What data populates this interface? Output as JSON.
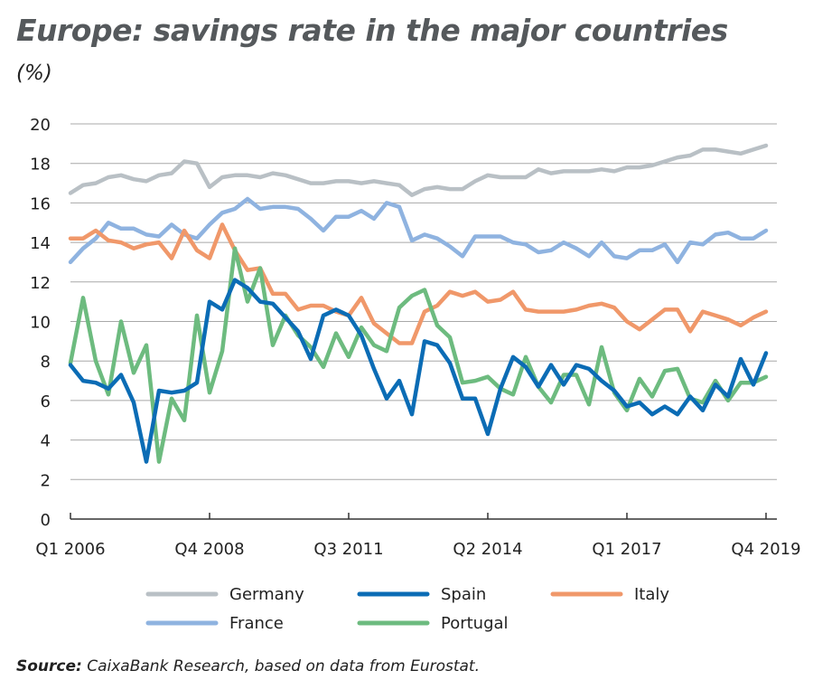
{
  "title": "Europe: savings rate in the major countries",
  "unit": "(%)",
  "source_label": "Source:",
  "source_text": "CaixaBank Research, based on data from Eurostat.",
  "chart_data": {
    "type": "line",
    "title": "Europe: savings rate in the major countries",
    "ylabel": "(%)",
    "ylim": [
      0,
      20
    ],
    "yticks": [
      0,
      2,
      4,
      6,
      8,
      10,
      12,
      14,
      16,
      18,
      20
    ],
    "grid": true,
    "legend_placement": "bottom",
    "x_start": "Q1 2006",
    "x_end": "Q4 2019",
    "frequency": "quarterly",
    "xtick_labels": [
      {
        "label": "Q1 2006",
        "index": 0
      },
      {
        "label": "Q4 2008",
        "index": 11
      },
      {
        "label": "Q3 2011",
        "index": 22
      },
      {
        "label": "Q2 2014",
        "index": 33
      },
      {
        "label": "Q1 2017",
        "index": 44
      },
      {
        "label": "Q4 2019",
        "index": 55
      }
    ],
    "series": [
      {
        "name": "Germany",
        "color": "#b9c0c5",
        "values": [
          16.5,
          16.9,
          17.0,
          17.3,
          17.4,
          17.2,
          17.1,
          17.4,
          17.5,
          18.1,
          18.0,
          16.8,
          17.3,
          17.4,
          17.4,
          17.3,
          17.5,
          17.4,
          17.2,
          17.0,
          17.0,
          17.1,
          17.1,
          17.0,
          17.1,
          17.0,
          16.9,
          16.4,
          16.7,
          16.8,
          16.7,
          16.7,
          17.1,
          17.4,
          17.3,
          17.3,
          17.3,
          17.7,
          17.5,
          17.6,
          17.6,
          17.6,
          17.7,
          17.6,
          17.8,
          17.8,
          17.9,
          18.1,
          18.3,
          18.4,
          18.7,
          18.7,
          18.6,
          18.5,
          18.7,
          18.9
        ]
      },
      {
        "name": "Spain",
        "color": "#0b6cb5",
        "values": [
          7.8,
          7.0,
          6.9,
          6.6,
          7.3,
          5.9,
          2.9,
          6.5,
          6.4,
          6.5,
          6.9,
          11.0,
          10.6,
          12.1,
          11.7,
          11.0,
          10.9,
          10.2,
          9.5,
          8.1,
          10.3,
          10.6,
          10.3,
          9.3,
          7.6,
          6.1,
          7.0,
          5.3,
          9.0,
          8.8,
          7.9,
          6.1,
          6.1,
          4.3,
          6.6,
          8.2,
          7.7,
          6.7,
          7.8,
          6.8,
          7.8,
          7.6,
          7.0,
          6.5,
          5.7,
          5.9,
          5.3,
          5.7,
          5.3,
          6.2,
          5.5,
          6.8,
          6.2,
          8.1,
          6.8,
          8.4
        ]
      },
      {
        "name": "Italy",
        "color": "#f0986a",
        "values": [
          14.2,
          14.2,
          14.6,
          14.1,
          14.0,
          13.7,
          13.9,
          14.0,
          13.2,
          14.6,
          13.6,
          13.2,
          14.9,
          13.6,
          12.6,
          12.7,
          11.4,
          11.4,
          10.6,
          10.8,
          10.8,
          10.5,
          10.3,
          11.2,
          9.9,
          9.4,
          8.9,
          8.9,
          10.5,
          10.8,
          11.5,
          11.3,
          11.5,
          11.0,
          11.1,
          11.5,
          10.6,
          10.5,
          10.5,
          10.5,
          10.6,
          10.8,
          10.9,
          10.7,
          10.0,
          9.6,
          10.1,
          10.6,
          10.6,
          9.5,
          10.5,
          10.3,
          10.1,
          9.8,
          10.2,
          10.5
        ]
      },
      {
        "name": "France",
        "color": "#8fb3e0",
        "values": [
          13.0,
          13.7,
          14.2,
          15.0,
          14.7,
          14.7,
          14.4,
          14.3,
          14.9,
          14.4,
          14.2,
          14.9,
          15.5,
          15.7,
          16.2,
          15.7,
          15.8,
          15.8,
          15.7,
          15.2,
          14.6,
          15.3,
          15.3,
          15.6,
          15.2,
          16.0,
          15.8,
          14.1,
          14.4,
          14.2,
          13.8,
          13.3,
          14.3,
          14.3,
          14.3,
          14.0,
          13.9,
          13.5,
          13.6,
          14.0,
          13.7,
          13.3,
          14.0,
          13.3,
          13.2,
          13.6,
          13.6,
          13.9,
          13.0,
          14.0,
          13.9,
          14.4,
          14.5,
          14.2,
          14.2,
          14.6
        ]
      },
      {
        "name": "Portugal",
        "color": "#6dbb7f",
        "values": [
          7.9,
          11.2,
          8.0,
          6.3,
          10.0,
          7.4,
          8.8,
          2.9,
          6.1,
          5.0,
          10.3,
          6.4,
          8.5,
          13.7,
          11.0,
          12.7,
          8.8,
          10.3,
          9.3,
          8.7,
          7.7,
          9.4,
          8.2,
          9.7,
          8.8,
          8.5,
          10.7,
          11.3,
          11.6,
          9.8,
          9.2,
          6.9,
          7.0,
          7.2,
          6.6,
          6.3,
          8.2,
          6.7,
          5.9,
          7.3,
          7.3,
          5.8,
          8.7,
          6.4,
          5.5,
          7.1,
          6.2,
          7.5,
          7.6,
          6.1,
          5.9,
          7.0,
          6.0,
          6.9,
          6.9,
          7.2
        ]
      }
    ]
  }
}
